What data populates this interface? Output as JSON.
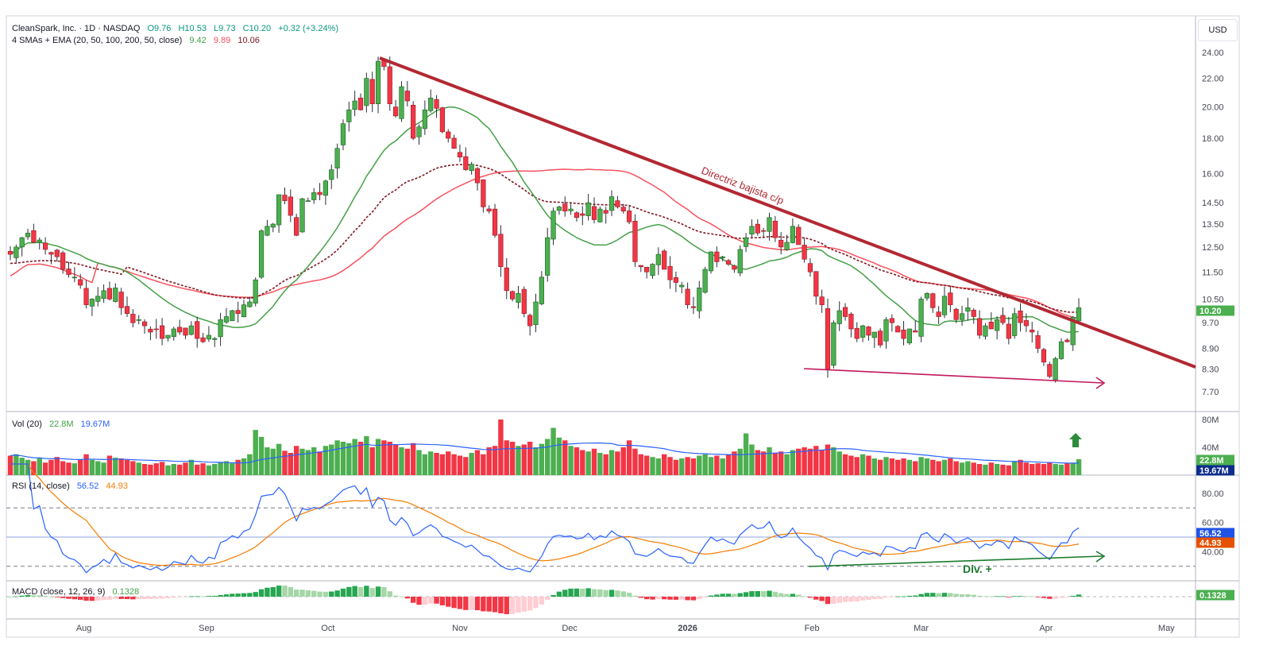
{
  "header": {
    "symbol_line": "CleanSpark, Inc. · 1D · NASDAQ",
    "open": "O9.76",
    "high": "H10.53",
    "low": "L9.73",
    "close": "C10.20",
    "change": "+0.32 (+3.24%)",
    "ma_label": "4 SMAs + EMA (20, 50, 100, 200, 50, close)",
    "ma_values": [
      "9.42",
      "9.89",
      "10.06"
    ]
  },
  "currency": "USD",
  "colors": {
    "up": "#4caf50",
    "down": "#f23645",
    "sma20": "#43a047",
    "sma50": "#f7525f",
    "ema50": "#801922",
    "trend": "#b22833",
    "rsi": "#2962ff",
    "rsi_ma": "#f57c00",
    "vol_ma": "#2962ff"
  },
  "annotations": {
    "trendline_label": "Directriz bajista c/p",
    "divergence_label": "Div. +"
  },
  "panels": {
    "volume": {
      "label": "Vol (20)",
      "value": "22.8M",
      "ma_value": "19.67M",
      "tag_value": "22.8M",
      "tag_ma": "19.67M"
    },
    "rsi": {
      "label": "RSI (14, close)",
      "value": "56.52",
      "ma_value": "44.93"
    },
    "macd": {
      "label": "MACD (close, 12, 26, 9)",
      "value": "0.1328"
    }
  },
  "last_price_tag": "10.20",
  "chart_data": {
    "type": "candlestick",
    "title": "CleanSpark, Inc. · 1D · NASDAQ",
    "scale": "log",
    "last_bar": {
      "open": 9.76,
      "high": 10.53,
      "low": 9.73,
      "close": 10.2
    },
    "close": [
      12.2,
      12.5,
      12.9,
      13.1,
      12.7,
      12.8,
      12.4,
      12.2,
      12.1,
      11.6,
      11.4,
      11.3,
      11.0,
      10.3,
      10.5,
      10.6,
      10.8,
      10.5,
      10.9,
      10.2,
      10.0,
      9.7,
      9.8,
      9.6,
      9.4,
      9.5,
      9.2,
      9.3,
      9.5,
      9.4,
      9.3,
      9.6,
      9.2,
      9.1,
      9.3,
      9.2,
      9.8,
      9.9,
      10.1,
      10.0,
      10.3,
      10.4,
      11.2,
      13.2,
      13.4,
      13.5,
      14.9,
      14.6,
      13.9,
      13.0,
      14.7,
      14.6,
      15.0,
      14.9,
      15.6,
      16.2,
      17.4,
      18.9,
      19.8,
      20.4,
      19.8,
      22.0,
      20.2,
      23.3,
      22.9,
      20.2,
      19.4,
      21.4,
      20.4,
      18.0,
      18.7,
      19.8,
      20.6,
      19.9,
      18.4,
      18.0,
      17.4,
      16.9,
      16.2,
      16.5,
      15.5,
      14.3,
      14.1,
      13.0,
      11.7,
      10.8,
      10.5,
      10.7,
      10.0,
      9.6,
      10.4,
      11.3,
      12.9,
      14.1,
      14.3,
      14.1,
      14.2,
      13.8,
      13.9,
      14.5,
      13.7,
      14.2,
      14.0,
      14.8,
      14.3,
      14.1,
      13.6,
      11.9,
      11.7,
      11.5,
      11.8,
      12.2,
      11.6,
      11.2,
      11.1,
      11.0,
      10.3,
      10.2,
      10.9,
      11.6,
      12.3,
      11.9,
      12.1,
      11.8,
      11.6,
      12.4,
      12.9,
      13.4,
      13.1,
      13.2,
      13.8,
      12.9,
      12.5,
      12.7,
      13.4,
      12.6,
      12.0,
      11.5,
      10.6,
      10.3,
      8.3,
      9.7,
      10.1,
      9.9,
      9.5,
      9.2,
      9.6,
      9.3,
      9.4,
      9.0,
      9.8,
      9.7,
      9.4,
      9.2,
      9.5,
      9.4,
      10.5,
      10.7,
      10.2,
      9.9,
      10.6,
      10.3,
      9.8,
      10.0,
      10.2,
      9.9,
      9.3,
      9.6,
      9.5,
      9.8,
      9.7,
      9.2,
      10.0,
      9.7,
      9.6,
      9.4,
      8.9,
      8.5,
      8.1,
      8.6,
      9.1,
      9.1,
      9.88,
      10.2
    ],
    "volume_millions": [
      28,
      30,
      25,
      22,
      20,
      24,
      18,
      22,
      26,
      20,
      18,
      17,
      22,
      30,
      22,
      20,
      18,
      28,
      25,
      24,
      22,
      20,
      18,
      16,
      15,
      17,
      19,
      14,
      16,
      15,
      18,
      22,
      15,
      17,
      14,
      16,
      18,
      20,
      17,
      22,
      24,
      30,
      65,
      55,
      40,
      38,
      45,
      35,
      32,
      42,
      38,
      36,
      40,
      34,
      42,
      44,
      50,
      48,
      46,
      52,
      48,
      56,
      40,
      52,
      50,
      48,
      44,
      40,
      38,
      46,
      36,
      30,
      34,
      32,
      30,
      34,
      30,
      28,
      26,
      32,
      36,
      30,
      40,
      42,
      80,
      50,
      48,
      42,
      44,
      48,
      40,
      45,
      52,
      68,
      54,
      50,
      42,
      40,
      36,
      34,
      38,
      32,
      30,
      36,
      34,
      40,
      50,
      38,
      30,
      28,
      26,
      24,
      30,
      26,
      22,
      24,
      26,
      24,
      28,
      30,
      26,
      28,
      24,
      30,
      34,
      38,
      60,
      44,
      36,
      34,
      40,
      32,
      34,
      30,
      36,
      38,
      40,
      38,
      42,
      36,
      44,
      40,
      34,
      30,
      28,
      26,
      30,
      28,
      24,
      22,
      26,
      24,
      22,
      24,
      22,
      20,
      26,
      24,
      22,
      20,
      22,
      24,
      20,
      18,
      20,
      18,
      16,
      15,
      18,
      16,
      15,
      14,
      20,
      22,
      18,
      16,
      17,
      16,
      18,
      16,
      15,
      17,
      18,
      22.8
    ],
    "y_ticks": [
      "24.00",
      "22.00",
      "20.00",
      "18.00",
      "16.00",
      "14.50",
      "13.50",
      "12.50",
      "11.50",
      "10.50",
      "9.70",
      "8.90",
      "8.30",
      "7.70"
    ],
    "volume_ticks": [
      "80M",
      "40M"
    ],
    "rsi_ticks": [
      "80.00",
      "60.00",
      "40.00"
    ],
    "x_ticks": [
      "Aug",
      "Sep",
      "Oct",
      "Nov",
      "Dec",
      "2026",
      "Feb",
      "Mar",
      "Apr",
      "May"
    ],
    "rsi_levels": [
      70,
      50,
      30
    ]
  }
}
